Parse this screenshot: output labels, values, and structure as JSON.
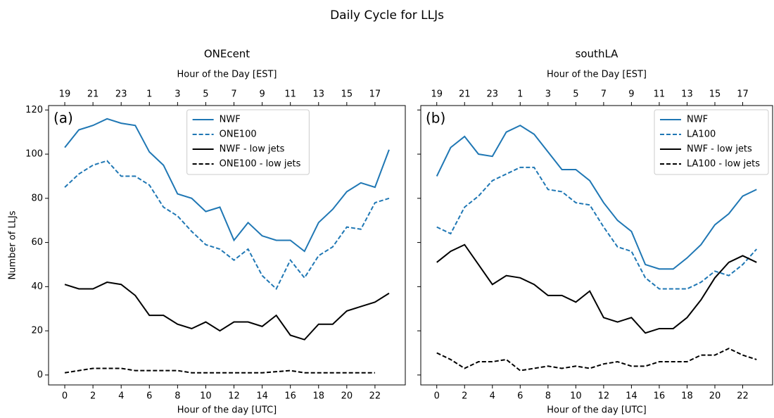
{
  "title": "Daily Cycle for LLJs",
  "chart_data": [
    {
      "type": "line",
      "title": "ONEcent",
      "panel_label": "(a)",
      "xlabel": "Hour of the day [UTC]",
      "x2label": "Hour of the Day [EST]",
      "ylabel": "Number of LLJs",
      "x": [
        0,
        1,
        2,
        3,
        4,
        5,
        6,
        7,
        8,
        9,
        10,
        11,
        12,
        13,
        14,
        15,
        16,
        17,
        18,
        19,
        20,
        21,
        22,
        23
      ],
      "xlim": [
        -1.15,
        24.15
      ],
      "xticks": [
        0,
        2,
        4,
        6,
        8,
        10,
        12,
        14,
        16,
        18,
        20,
        22
      ],
      "x2ticks": [
        {
          "value": 0,
          "label": "19"
        },
        {
          "value": 2,
          "label": "21"
        },
        {
          "value": 4,
          "label": "23"
        },
        {
          "value": 6,
          "label": "1"
        },
        {
          "value": 8,
          "label": "3"
        },
        {
          "value": 10,
          "label": "5"
        },
        {
          "value": 12,
          "label": "7"
        },
        {
          "value": 14,
          "label": "9"
        },
        {
          "value": 16,
          "label": "11"
        },
        {
          "value": 18,
          "label": "13"
        },
        {
          "value": 20,
          "label": "15"
        },
        {
          "value": 22,
          "label": "17"
        }
      ],
      "ylim": [
        -4.5,
        122
      ],
      "yticks": [
        0,
        20,
        40,
        60,
        80,
        100,
        120
      ],
      "yticklabels": true,
      "legend": "upper center",
      "series": [
        {
          "name": "NWF",
          "color": "#1f77b4",
          "linestyle": "solid",
          "values": [
            103,
            111,
            113,
            116,
            114,
            113,
            101,
            95,
            82,
            80,
            74,
            76,
            61,
            69,
            63,
            61,
            61,
            56,
            69,
            75,
            83,
            87,
            85,
            102
          ]
        },
        {
          "name": "ONE100",
          "color": "#1f77b4",
          "linestyle": "dashed",
          "values": [
            85,
            91,
            95,
            97,
            90,
            90,
            86,
            76,
            72,
            65,
            59,
            57,
            52,
            57,
            45,
            39,
            52,
            44,
            54,
            58,
            67,
            66,
            78,
            80
          ]
        },
        {
          "name": "NWF - low jets",
          "color": "#000000",
          "linestyle": "solid",
          "values": [
            41,
            39,
            39,
            42,
            41,
            36,
            27,
            27,
            23,
            21,
            24,
            20,
            24,
            24,
            22,
            27,
            18,
            16,
            23,
            23,
            29,
            31,
            33,
            37
          ]
        },
        {
          "name": "ONE100 - low jets",
          "color": "#000000",
          "linestyle": "dashed",
          "values": [
            1,
            2,
            3,
            3,
            3,
            2,
            2,
            2,
            2,
            1,
            1,
            1,
            1,
            1,
            1,
            1.5,
            2,
            1,
            1,
            1,
            1,
            1,
            1,
            null
          ]
        }
      ]
    },
    {
      "type": "line",
      "title": "southLA",
      "panel_label": "(b)",
      "xlabel": "Hour of the day [UTC]",
      "x2label": "Hour of the Day [EST]",
      "x": [
        0,
        1,
        2,
        3,
        4,
        5,
        6,
        7,
        8,
        9,
        10,
        11,
        12,
        13,
        14,
        15,
        16,
        17,
        18,
        19,
        20,
        21,
        22,
        23
      ],
      "xlim": [
        -1.15,
        24.15
      ],
      "xticks": [
        0,
        2,
        4,
        6,
        8,
        10,
        12,
        14,
        16,
        18,
        20,
        22
      ],
      "x2ticks": [
        {
          "value": 0,
          "label": "19"
        },
        {
          "value": 2,
          "label": "21"
        },
        {
          "value": 4,
          "label": "23"
        },
        {
          "value": 6,
          "label": "1"
        },
        {
          "value": 8,
          "label": "3"
        },
        {
          "value": 10,
          "label": "5"
        },
        {
          "value": 12,
          "label": "7"
        },
        {
          "value": 14,
          "label": "9"
        },
        {
          "value": 16,
          "label": "11"
        },
        {
          "value": 18,
          "label": "13"
        },
        {
          "value": 20,
          "label": "15"
        },
        {
          "value": 22,
          "label": "17"
        }
      ],
      "ylim": [
        -4.5,
        122
      ],
      "yticks": [
        0,
        20,
        40,
        60,
        80,
        100,
        120
      ],
      "yticklabels": false,
      "legend": "upper right",
      "series": [
        {
          "name": "NWF",
          "color": "#1f77b4",
          "linestyle": "solid",
          "values": [
            90,
            103,
            108,
            100,
            99,
            110,
            113,
            109,
            101,
            93,
            93,
            88,
            78,
            70,
            65,
            50,
            48,
            48,
            53,
            59,
            68,
            73,
            81,
            84
          ]
        },
        {
          "name": "LA100",
          "color": "#1f77b4",
          "linestyle": "dashed",
          "values": [
            67,
            64,
            76,
            81,
            88,
            91,
            94,
            94,
            84,
            83,
            78,
            77,
            67,
            58,
            56,
            44,
            39,
            39,
            39,
            42,
            47,
            45,
            50,
            57
          ]
        },
        {
          "name": "NWF - low jets",
          "color": "#000000",
          "linestyle": "solid",
          "values": [
            51,
            56,
            59,
            50,
            41,
            45,
            44,
            41,
            36,
            36,
            33,
            38,
            26,
            24,
            26,
            19,
            21,
            21,
            26,
            34,
            44,
            51,
            54,
            51
          ]
        },
        {
          "name": "LA100 - low jets",
          "color": "#000000",
          "linestyle": "dashed",
          "values": [
            10,
            7,
            3,
            6,
            6,
            7,
            2,
            3,
            4,
            3,
            4,
            3,
            5,
            6,
            4,
            4,
            6,
            6,
            6,
            9,
            9,
            12,
            9,
            7
          ]
        }
      ]
    }
  ]
}
